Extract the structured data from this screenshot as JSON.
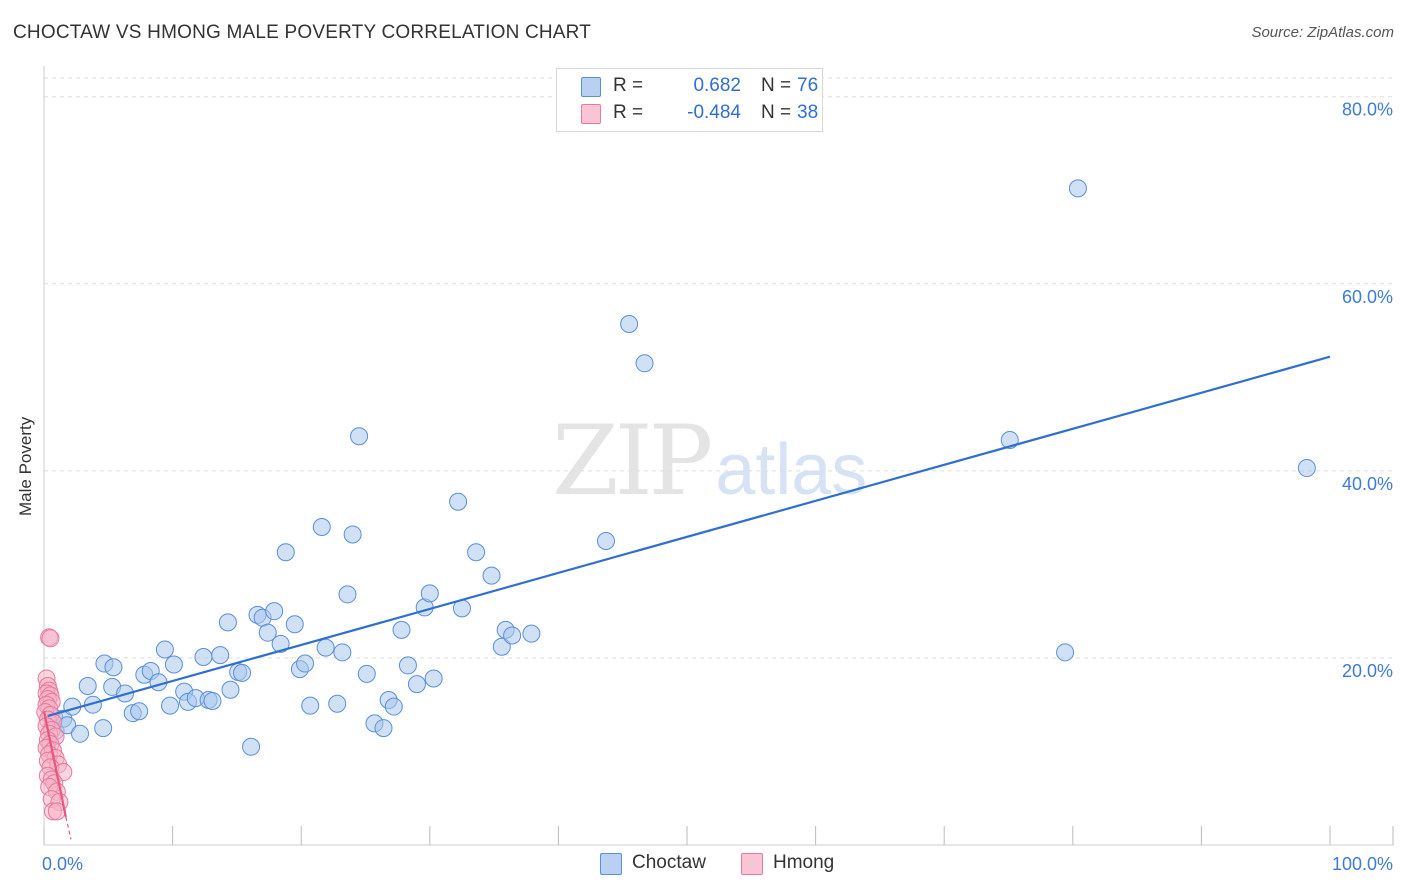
{
  "header": {
    "title": "CHOCTAW VS HMONG MALE POVERTY CORRELATION CHART",
    "source": "Source: ZipAtlas.com"
  },
  "watermark": {
    "zip": "ZIP",
    "atlas": "atlas"
  },
  "legend": {
    "rows": [
      {
        "r_label": "R =",
        "r_value": "0.682",
        "n_label": "N =",
        "n_value": "76",
        "color": "#b8d1f3"
      },
      {
        "r_label": "R =",
        "r_value": "-0.484",
        "n_label": "N =",
        "n_value": "38",
        "color": "#f9c4d4"
      }
    ]
  },
  "bottom_legend": {
    "items": [
      {
        "label": "Choctaw",
        "color": "#b8d1f3"
      },
      {
        "label": "Hmong",
        "color": "#f9c4d4"
      }
    ]
  },
  "colors": {
    "choctaw_fill": "#a9c8ef",
    "choctaw_stroke": "#5b8fd6",
    "choctaw_line": "#2f6fd0",
    "hmong_fill": "#f6b3c7",
    "hmong_stroke": "#e9799c",
    "hmong_line": "#e8577f",
    "grid": "#dddddd",
    "axis_text": "#3d7bd4"
  },
  "chart_data": {
    "type": "scatter",
    "title": "CHOCTAW VS HMONG MALE POVERTY CORRELATION CHART",
    "xlabel": "",
    "ylabel": "Male Poverty",
    "xlim": [
      0,
      100
    ],
    "ylim": [
      0,
      82
    ],
    "x_tick_labels": [
      "0.0%",
      "100.0%"
    ],
    "y_ticks": [
      20,
      40,
      60,
      80
    ],
    "y_tick_labels": [
      "20.0%",
      "40.0%",
      "60.0%",
      "80.0%"
    ],
    "grid": true,
    "series": [
      {
        "name": "Choctaw",
        "r": 0.682,
        "n": 76,
        "trend": {
          "x0": 0.3,
          "y0": 13.8,
          "x1": 100,
          "y1": 52.2
        },
        "points": [
          [
            0.8,
            13.6
          ],
          [
            0.9,
            12.2
          ],
          [
            1.5,
            13.5
          ],
          [
            1.8,
            12.8
          ],
          [
            2.2,
            14.8
          ],
          [
            2.8,
            11.9
          ],
          [
            3.4,
            17.0
          ],
          [
            3.8,
            15.0
          ],
          [
            4.6,
            12.5
          ],
          [
            4.7,
            19.4
          ],
          [
            5.4,
            19.0
          ],
          [
            5.3,
            16.9
          ],
          [
            6.3,
            16.2
          ],
          [
            6.9,
            14.1
          ],
          [
            7.4,
            14.3
          ],
          [
            7.8,
            18.2
          ],
          [
            8.3,
            18.6
          ],
          [
            8.9,
            17.4
          ],
          [
            9.4,
            20.9
          ],
          [
            9.8,
            14.9
          ],
          [
            10.1,
            19.3
          ],
          [
            10.9,
            16.4
          ],
          [
            11.2,
            15.3
          ],
          [
            11.8,
            15.7
          ],
          [
            12.4,
            20.1
          ],
          [
            12.8,
            15.5
          ],
          [
            13.1,
            15.4
          ],
          [
            13.7,
            20.3
          ],
          [
            14.3,
            23.8
          ],
          [
            14.5,
            16.6
          ],
          [
            15.1,
            18.5
          ],
          [
            15.4,
            18.4
          ],
          [
            16.1,
            10.5
          ],
          [
            16.6,
            24.6
          ],
          [
            17.0,
            24.3
          ],
          [
            17.4,
            22.7
          ],
          [
            17.9,
            25.0
          ],
          [
            18.4,
            21.5
          ],
          [
            18.8,
            31.3
          ],
          [
            19.5,
            23.6
          ],
          [
            19.9,
            18.8
          ],
          [
            20.3,
            19.4
          ],
          [
            20.7,
            14.9
          ],
          [
            21.6,
            34.0
          ],
          [
            21.9,
            21.1
          ],
          [
            22.8,
            15.1
          ],
          [
            23.2,
            20.6
          ],
          [
            23.6,
            26.8
          ],
          [
            24.0,
            33.2
          ],
          [
            24.5,
            43.7
          ],
          [
            25.1,
            18.3
          ],
          [
            25.7,
            13.0
          ],
          [
            26.4,
            12.5
          ],
          [
            26.8,
            15.5
          ],
          [
            27.2,
            14.8
          ],
          [
            27.8,
            23.0
          ],
          [
            28.3,
            19.2
          ],
          [
            29.0,
            17.2
          ],
          [
            29.6,
            25.4
          ],
          [
            30.0,
            26.9
          ],
          [
            30.3,
            17.8
          ],
          [
            32.2,
            36.7
          ],
          [
            32.5,
            25.3
          ],
          [
            33.6,
            31.3
          ],
          [
            34.8,
            28.8
          ],
          [
            35.6,
            21.2
          ],
          [
            35.9,
            23.0
          ],
          [
            36.4,
            22.4
          ],
          [
            37.9,
            22.6
          ],
          [
            43.7,
            32.5
          ],
          [
            45.5,
            55.7
          ],
          [
            46.7,
            51.5
          ],
          [
            75.1,
            43.3
          ],
          [
            79.4,
            20.6
          ],
          [
            80.4,
            70.2
          ],
          [
            98.2,
            40.3
          ]
        ]
      },
      {
        "name": "Hmong",
        "r": -0.484,
        "n": 38,
        "trend": {
          "x0": 0.0,
          "y0": 14.3,
          "x1": 1.7,
          "y1": 3.0,
          "dash_to_x": 2.1,
          "dash_to_y": 0.6
        },
        "points": [
          [
            0.4,
            22.2
          ],
          [
            0.5,
            22.1
          ],
          [
            0.2,
            17.8
          ],
          [
            0.3,
            17.0
          ],
          [
            0.4,
            16.5
          ],
          [
            0.2,
            16.2
          ],
          [
            0.5,
            16.0
          ],
          [
            0.3,
            15.6
          ],
          [
            0.6,
            15.3
          ],
          [
            0.2,
            15.0
          ],
          [
            0.4,
            14.6
          ],
          [
            0.1,
            14.2
          ],
          [
            0.5,
            13.9
          ],
          [
            0.3,
            13.4
          ],
          [
            0.7,
            13.1
          ],
          [
            0.2,
            12.7
          ],
          [
            0.6,
            12.3
          ],
          [
            0.4,
            11.9
          ],
          [
            0.9,
            11.6
          ],
          [
            0.3,
            11.2
          ],
          [
            0.5,
            10.8
          ],
          [
            0.2,
            10.4
          ],
          [
            0.7,
            10.1
          ],
          [
            0.4,
            9.7
          ],
          [
            0.9,
            9.3
          ],
          [
            0.3,
            9.0
          ],
          [
            1.1,
            8.6
          ],
          [
            0.5,
            8.3
          ],
          [
            1.5,
            7.8
          ],
          [
            0.3,
            7.4
          ],
          [
            0.6,
            7.0
          ],
          [
            0.8,
            6.6
          ],
          [
            0.4,
            6.2
          ],
          [
            1.0,
            5.7
          ],
          [
            0.6,
            4.9
          ],
          [
            1.2,
            4.6
          ],
          [
            0.7,
            3.6
          ],
          [
            1.0,
            3.6
          ]
        ]
      }
    ]
  }
}
